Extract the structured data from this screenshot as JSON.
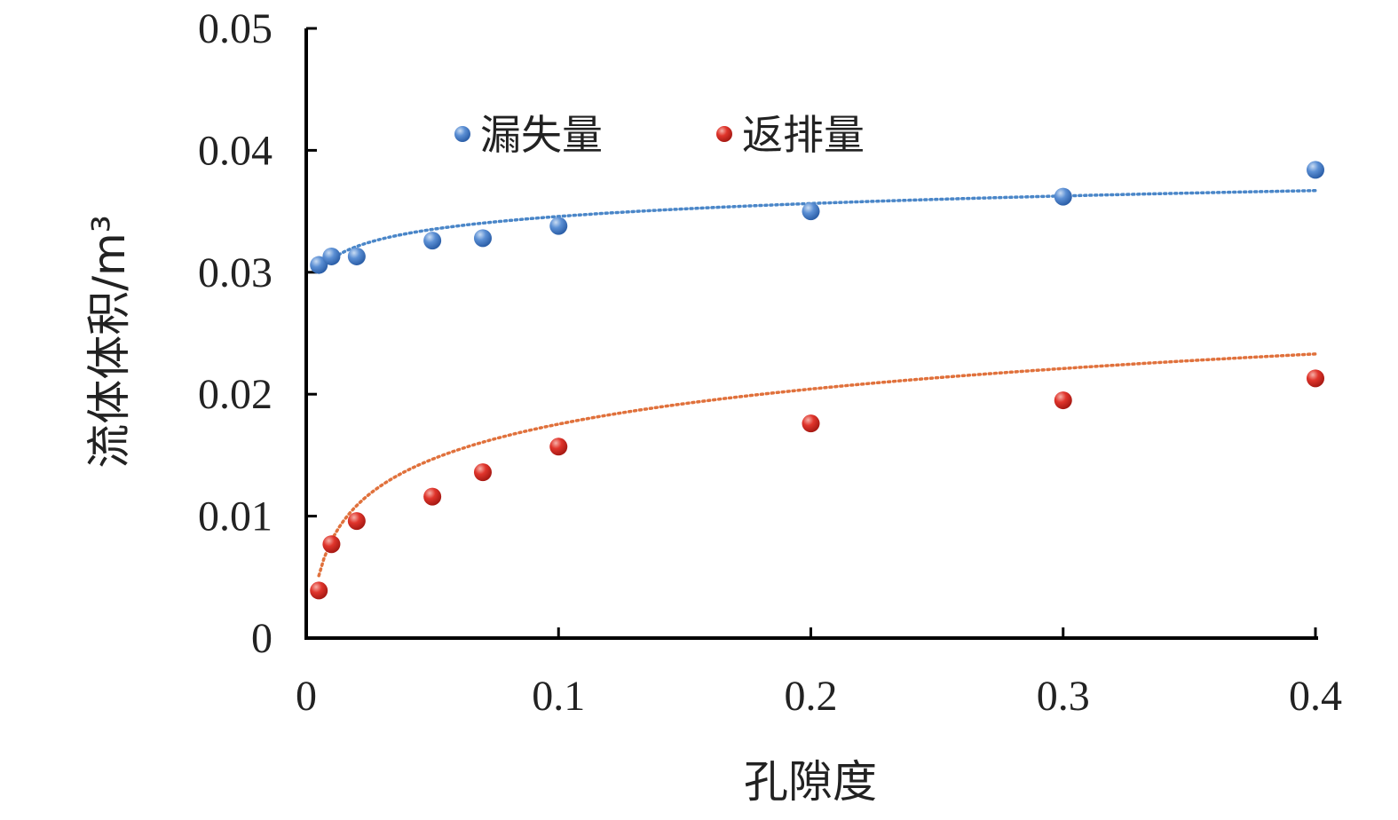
{
  "chart_data": {
    "type": "scatter",
    "xlabel": "孔隙度",
    "ylabel": "流体体积/m³",
    "xlim": [
      0,
      0.4
    ],
    "ylim": [
      0,
      0.05
    ],
    "xticks": [
      "0",
      "0.1",
      "0.2",
      "0.3",
      "0.4"
    ],
    "yticks": [
      "0",
      "0.01",
      "0.02",
      "0.03",
      "0.04",
      "0.05"
    ],
    "grid": false,
    "legend_position": "top-left",
    "series": [
      {
        "name": "漏失量",
        "color": "#3f74c2",
        "trend_color": "#4a86c8",
        "trendline": "logarithmic",
        "x": [
          0.005,
          0.01,
          0.02,
          0.05,
          0.07,
          0.1,
          0.2,
          0.3,
          0.4
        ],
        "y": [
          0.0306,
          0.0313,
          0.0313,
          0.0326,
          0.0328,
          0.0338,
          0.035,
          0.0362,
          0.0384
        ],
        "trend": {
          "a": 0.0367,
          "b": 0.00153
        }
      },
      {
        "name": "返排量",
        "color": "#d12a22",
        "trend_color": "#e0713c",
        "trendline": "logarithmic",
        "x": [
          0.005,
          0.01,
          0.02,
          0.05,
          0.07,
          0.1,
          0.2,
          0.3,
          0.4
        ],
        "y": [
          0.0039,
          0.0077,
          0.0096,
          0.0116,
          0.0136,
          0.0157,
          0.0176,
          0.0195,
          0.0213
        ],
        "trend": {
          "a": 0.0233,
          "b": 0.00415
        }
      }
    ]
  }
}
